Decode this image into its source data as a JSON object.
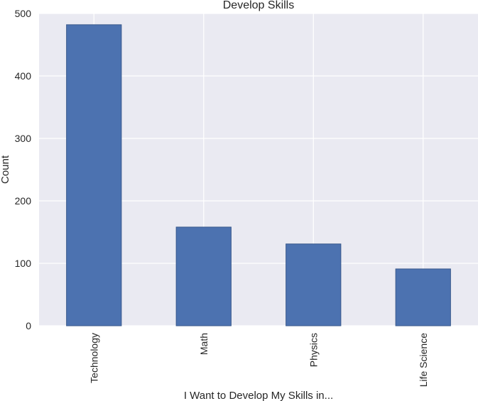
{
  "chart_data": {
    "type": "bar",
    "title": "Develop Skills",
    "xlabel": "I Want to Develop My Skills in...",
    "ylabel": "Count",
    "categories": [
      "Technology",
      "Math",
      "Physics",
      "Life Science"
    ],
    "values": [
      482,
      158,
      131,
      91
    ],
    "ylim": [
      0,
      500
    ],
    "yticks": [
      "0",
      "100",
      "200",
      "300",
      "400",
      "500"
    ],
    "grid": true,
    "bar_color": "#4c72b0",
    "plot_background": "#eaeaf2",
    "grid_color": "#ffffff"
  }
}
